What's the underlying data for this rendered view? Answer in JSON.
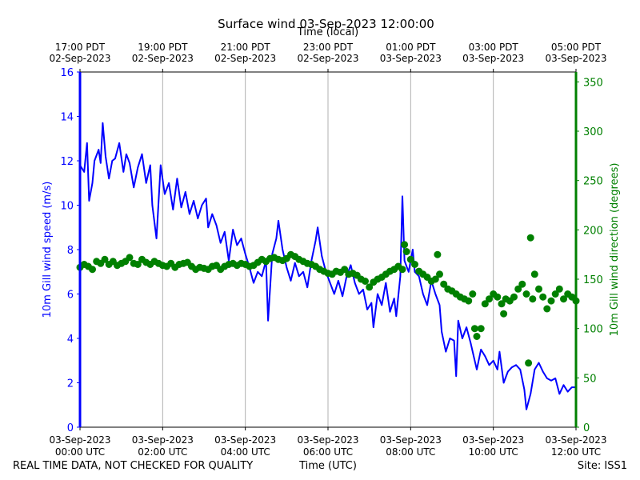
{
  "title": "Surface wind 03-Sep-2023 12:00:00",
  "top_axis_label": "Time (local)",
  "footer": {
    "disclaimer": "REAL TIME DATA, NOT CHECKED FOR QUALITY",
    "site": "Site: ISS1"
  },
  "colors": {
    "speed": "#0000ff",
    "direction": "#008000",
    "grid": "#b0b0b0"
  },
  "chart_data": {
    "type": "line",
    "xlabel": "Time (UTC)",
    "ylabel": "10m Gill wind speed (m/s)",
    "y2label": "10m Gill wind direction (degrees)",
    "xlim": [
      0,
      12
    ],
    "ylim": [
      0,
      16
    ],
    "y2lim": [
      0,
      360
    ],
    "x_unit": "hours since 03-Sep-2023 00:00 UTC",
    "bottom_ticks": [
      {
        "x": 0,
        "l1": "03-Sep-2023",
        "l2": "00:00 UTC"
      },
      {
        "x": 2,
        "l1": "03-Sep-2023",
        "l2": "02:00 UTC"
      },
      {
        "x": 4,
        "l1": "03-Sep-2023",
        "l2": "04:00 UTC"
      },
      {
        "x": 6,
        "l1": "03-Sep-2023",
        "l2": "06:00 UTC"
      },
      {
        "x": 8,
        "l1": "03-Sep-2023",
        "l2": "08:00 UTC"
      },
      {
        "x": 10,
        "l1": "03-Sep-2023",
        "l2": "10:00 UTC"
      },
      {
        "x": 12,
        "l1": "03-Sep-2023",
        "l2": "12:00 UTC"
      }
    ],
    "top_ticks": [
      {
        "x": 0,
        "l1": "17:00 PDT",
        "l2": "02-Sep-2023"
      },
      {
        "x": 2,
        "l1": "19:00 PDT",
        "l2": "02-Sep-2023"
      },
      {
        "x": 4,
        "l1": "21:00 PDT",
        "l2": "02-Sep-2023"
      },
      {
        "x": 6,
        "l1": "23:00 PDT",
        "l2": "02-Sep-2023"
      },
      {
        "x": 8,
        "l1": "01:00 PDT",
        "l2": "03-Sep-2023"
      },
      {
        "x": 10,
        "l1": "03:00 PDT",
        "l2": "03-Sep-2023"
      },
      {
        "x": 12,
        "l1": "05:00 PDT",
        "l2": "03-Sep-2023"
      }
    ],
    "y_ticks": [
      0,
      2,
      4,
      6,
      8,
      10,
      12,
      14,
      16
    ],
    "y2_ticks": [
      0,
      50,
      100,
      150,
      200,
      250,
      300,
      350
    ],
    "grid": "vertical at major x ticks",
    "series": [
      {
        "axis": "left",
        "style": "line",
        "points": [
          [
            0.0,
            11.8
          ],
          [
            0.1,
            11.5
          ],
          [
            0.17,
            12.8
          ],
          [
            0.22,
            10.2
          ],
          [
            0.3,
            11.0
          ],
          [
            0.35,
            12.0
          ],
          [
            0.45,
            12.5
          ],
          [
            0.5,
            11.9
          ],
          [
            0.55,
            13.7
          ],
          [
            0.62,
            12.2
          ],
          [
            0.7,
            11.2
          ],
          [
            0.78,
            12.0
          ],
          [
            0.85,
            12.1
          ],
          [
            0.95,
            12.8
          ],
          [
            1.05,
            11.5
          ],
          [
            1.12,
            12.3
          ],
          [
            1.2,
            11.9
          ],
          [
            1.3,
            10.8
          ],
          [
            1.4,
            11.7
          ],
          [
            1.5,
            12.3
          ],
          [
            1.6,
            11.0
          ],
          [
            1.7,
            11.8
          ],
          [
            1.75,
            10.0
          ],
          [
            1.85,
            8.5
          ],
          [
            1.95,
            11.8
          ],
          [
            2.05,
            10.5
          ],
          [
            2.15,
            11.0
          ],
          [
            2.25,
            9.8
          ],
          [
            2.35,
            11.2
          ],
          [
            2.45,
            9.9
          ],
          [
            2.55,
            10.6
          ],
          [
            2.65,
            9.6
          ],
          [
            2.75,
            10.2
          ],
          [
            2.85,
            9.4
          ],
          [
            2.95,
            10.0
          ],
          [
            3.05,
            10.3
          ],
          [
            3.1,
            9.0
          ],
          [
            3.2,
            9.6
          ],
          [
            3.3,
            9.1
          ],
          [
            3.4,
            8.3
          ],
          [
            3.5,
            8.8
          ],
          [
            3.6,
            7.5
          ],
          [
            3.7,
            8.9
          ],
          [
            3.8,
            8.2
          ],
          [
            3.9,
            8.5
          ],
          [
            4.0,
            7.8
          ],
          [
            4.1,
            7.2
          ],
          [
            4.2,
            6.5
          ],
          [
            4.3,
            7.0
          ],
          [
            4.4,
            6.8
          ],
          [
            4.5,
            7.5
          ],
          [
            4.55,
            4.8
          ],
          [
            4.65,
            7.8
          ],
          [
            4.75,
            8.5
          ],
          [
            4.8,
            9.3
          ],
          [
            4.9,
            8.0
          ],
          [
            5.0,
            7.2
          ],
          [
            5.1,
            6.6
          ],
          [
            5.2,
            7.4
          ],
          [
            5.3,
            6.8
          ],
          [
            5.4,
            7.0
          ],
          [
            5.5,
            6.3
          ],
          [
            5.6,
            7.5
          ],
          [
            5.7,
            8.4
          ],
          [
            5.75,
            9.0
          ],
          [
            5.85,
            7.7
          ],
          [
            5.95,
            7.0
          ],
          [
            6.05,
            6.5
          ],
          [
            6.15,
            6.0
          ],
          [
            6.25,
            6.6
          ],
          [
            6.35,
            5.9
          ],
          [
            6.45,
            6.8
          ],
          [
            6.55,
            7.3
          ],
          [
            6.65,
            6.5
          ],
          [
            6.75,
            6.0
          ],
          [
            6.85,
            6.2
          ],
          [
            6.95,
            5.3
          ],
          [
            7.05,
            5.6
          ],
          [
            7.1,
            4.5
          ],
          [
            7.2,
            6.0
          ],
          [
            7.3,
            5.5
          ],
          [
            7.4,
            6.5
          ],
          [
            7.5,
            5.2
          ],
          [
            7.6,
            5.8
          ],
          [
            7.65,
            5.0
          ],
          [
            7.75,
            6.8
          ],
          [
            7.8,
            10.4
          ],
          [
            7.85,
            7.5
          ],
          [
            7.95,
            7.0
          ],
          [
            8.05,
            8.0
          ],
          [
            8.1,
            7.0
          ],
          [
            8.2,
            6.8
          ],
          [
            8.3,
            6.0
          ],
          [
            8.4,
            5.5
          ],
          [
            8.5,
            6.6
          ],
          [
            8.6,
            6.0
          ],
          [
            8.7,
            5.5
          ],
          [
            8.75,
            4.3
          ],
          [
            8.85,
            3.4
          ],
          [
            8.95,
            4.0
          ],
          [
            9.05,
            3.9
          ],
          [
            9.1,
            2.3
          ],
          [
            9.15,
            4.8
          ],
          [
            9.25,
            4.0
          ],
          [
            9.35,
            4.5
          ],
          [
            9.45,
            3.8
          ],
          [
            9.55,
            3.0
          ],
          [
            9.6,
            2.6
          ],
          [
            9.7,
            3.5
          ],
          [
            9.8,
            3.2
          ],
          [
            9.9,
            2.8
          ],
          [
            10.0,
            3.0
          ],
          [
            10.1,
            2.6
          ],
          [
            10.15,
            3.4
          ],
          [
            10.25,
            2.0
          ],
          [
            10.35,
            2.5
          ],
          [
            10.45,
            2.7
          ],
          [
            10.55,
            2.8
          ],
          [
            10.65,
            2.6
          ],
          [
            10.75,
            1.7
          ],
          [
            10.8,
            0.8
          ],
          [
            10.9,
            1.5
          ],
          [
            11.0,
            2.6
          ],
          [
            11.1,
            2.9
          ],
          [
            11.2,
            2.5
          ],
          [
            11.3,
            2.2
          ],
          [
            11.4,
            2.1
          ],
          [
            11.5,
            2.2
          ],
          [
            11.6,
            1.5
          ],
          [
            11.7,
            1.9
          ],
          [
            11.8,
            1.6
          ],
          [
            11.9,
            1.8
          ],
          [
            12.0,
            1.8
          ]
        ]
      },
      {
        "axis": "right",
        "style": "markers",
        "points": [
          [
            0.0,
            162
          ],
          [
            0.1,
            165
          ],
          [
            0.2,
            163
          ],
          [
            0.3,
            160
          ],
          [
            0.4,
            168
          ],
          [
            0.5,
            166
          ],
          [
            0.6,
            170
          ],
          [
            0.7,
            165
          ],
          [
            0.8,
            168
          ],
          [
            0.9,
            164
          ],
          [
            1.0,
            166
          ],
          [
            1.1,
            168
          ],
          [
            1.2,
            172
          ],
          [
            1.3,
            166
          ],
          [
            1.4,
            165
          ],
          [
            1.5,
            170
          ],
          [
            1.6,
            167
          ],
          [
            1.7,
            165
          ],
          [
            1.8,
            168
          ],
          [
            1.9,
            166
          ],
          [
            2.0,
            164
          ],
          [
            2.1,
            163
          ],
          [
            2.2,
            166
          ],
          [
            2.3,
            162
          ],
          [
            2.4,
            165
          ],
          [
            2.5,
            166
          ],
          [
            2.6,
            167
          ],
          [
            2.7,
            163
          ],
          [
            2.8,
            160
          ],
          [
            2.9,
            162
          ],
          [
            3.0,
            161
          ],
          [
            3.1,
            160
          ],
          [
            3.2,
            163
          ],
          [
            3.3,
            164
          ],
          [
            3.4,
            160
          ],
          [
            3.5,
            163
          ],
          [
            3.6,
            165
          ],
          [
            3.7,
            166
          ],
          [
            3.8,
            164
          ],
          [
            3.9,
            166
          ],
          [
            4.0,
            165
          ],
          [
            4.1,
            163
          ],
          [
            4.2,
            164
          ],
          [
            4.3,
            167
          ],
          [
            4.4,
            170
          ],
          [
            4.5,
            168
          ],
          [
            4.6,
            171
          ],
          [
            4.7,
            172
          ],
          [
            4.8,
            170
          ],
          [
            4.9,
            169
          ],
          [
            5.0,
            171
          ],
          [
            5.1,
            175
          ],
          [
            5.2,
            173
          ],
          [
            5.3,
            170
          ],
          [
            5.4,
            168
          ],
          [
            5.5,
            166
          ],
          [
            5.6,
            165
          ],
          [
            5.7,
            163
          ],
          [
            5.8,
            160
          ],
          [
            5.9,
            158
          ],
          [
            6.0,
            156
          ],
          [
            6.1,
            155
          ],
          [
            6.2,
            158
          ],
          [
            6.3,
            157
          ],
          [
            6.4,
            160
          ],
          [
            6.5,
            155
          ],
          [
            6.6,
            156
          ],
          [
            6.7,
            154
          ],
          [
            6.8,
            150
          ],
          [
            6.9,
            148
          ],
          [
            7.0,
            142
          ],
          [
            7.1,
            147
          ],
          [
            7.2,
            150
          ],
          [
            7.3,
            152
          ],
          [
            7.4,
            155
          ],
          [
            7.5,
            158
          ],
          [
            7.6,
            160
          ],
          [
            7.7,
            163
          ],
          [
            7.8,
            160
          ],
          [
            7.85,
            185
          ],
          [
            7.9,
            178
          ],
          [
            8.0,
            170
          ],
          [
            8.1,
            165
          ],
          [
            8.2,
            158
          ],
          [
            8.3,
            155
          ],
          [
            8.4,
            152
          ],
          [
            8.5,
            148
          ],
          [
            8.6,
            150
          ],
          [
            8.65,
            175
          ],
          [
            8.7,
            155
          ],
          [
            8.8,
            145
          ],
          [
            8.9,
            140
          ],
          [
            9.0,
            138
          ],
          [
            9.1,
            135
          ],
          [
            9.2,
            132
          ],
          [
            9.3,
            130
          ],
          [
            9.4,
            128
          ],
          [
            9.5,
            135
          ],
          [
            9.55,
            100
          ],
          [
            9.6,
            92
          ],
          [
            9.7,
            100
          ],
          [
            9.8,
            125
          ],
          [
            9.9,
            130
          ],
          [
            10.0,
            135
          ],
          [
            10.1,
            132
          ],
          [
            10.2,
            125
          ],
          [
            10.25,
            115
          ],
          [
            10.3,
            130
          ],
          [
            10.4,
            128
          ],
          [
            10.5,
            132
          ],
          [
            10.6,
            140
          ],
          [
            10.7,
            145
          ],
          [
            10.8,
            135
          ],
          [
            10.85,
            65
          ],
          [
            10.9,
            192
          ],
          [
            10.95,
            130
          ],
          [
            11.0,
            155
          ],
          [
            11.1,
            140
          ],
          [
            11.2,
            132
          ],
          [
            11.3,
            120
          ],
          [
            11.4,
            128
          ],
          [
            11.5,
            135
          ],
          [
            11.6,
            140
          ],
          [
            11.7,
            130
          ],
          [
            11.8,
            135
          ],
          [
            11.9,
            132
          ],
          [
            12.0,
            128
          ]
        ]
      }
    ]
  }
}
